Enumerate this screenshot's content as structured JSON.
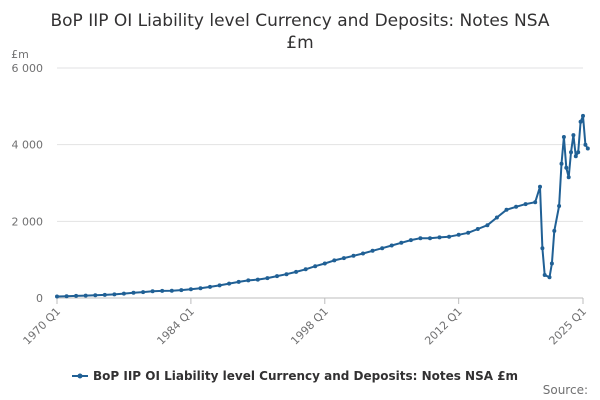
{
  "chart_data": {
    "type": "line",
    "title_line1": "BoP IIP OI Liability level Currency and Deposits: Notes NSA",
    "title_line2": "£m",
    "unit_label": "£m",
    "ylim": [
      0,
      6000
    ],
    "y_ticks": [
      0,
      2000,
      4000,
      6000
    ],
    "y_tick_labels": [
      "0",
      "2 000",
      "4 000",
      "6 000"
    ],
    "x_range": [
      1970,
      2025
    ],
    "x_ticks": [
      1970,
      1984,
      1998,
      2012,
      2025
    ],
    "x_tick_labels": [
      "1970 Q1",
      "1984 Q1",
      "1998 Q1",
      "2012 Q1",
      "2025 Q1"
    ],
    "grid": true,
    "legend_position": "bottom",
    "series": [
      {
        "name": "BoP IIP OI Liability level Currency and Deposits: Notes NSA £m",
        "color": "#206095",
        "points": [
          [
            1970.0,
            40
          ],
          [
            1971.0,
            45
          ],
          [
            1972.0,
            55
          ],
          [
            1973.0,
            62
          ],
          [
            1974.0,
            72
          ],
          [
            1975.0,
            82
          ],
          [
            1976.0,
            95
          ],
          [
            1977.0,
            115
          ],
          [
            1978.0,
            135
          ],
          [
            1979.0,
            155
          ],
          [
            1980.0,
            175
          ],
          [
            1981.0,
            185
          ],
          [
            1982.0,
            190
          ],
          [
            1983.0,
            205
          ],
          [
            1984.0,
            230
          ],
          [
            1985.0,
            255
          ],
          [
            1986.0,
            290
          ],
          [
            1987.0,
            330
          ],
          [
            1988.0,
            375
          ],
          [
            1989.0,
            420
          ],
          [
            1990.0,
            460
          ],
          [
            1991.0,
            480
          ],
          [
            1992.0,
            520
          ],
          [
            1993.0,
            570
          ],
          [
            1994.0,
            620
          ],
          [
            1995.0,
            680
          ],
          [
            1996.0,
            750
          ],
          [
            1997.0,
            830
          ],
          [
            1998.0,
            900
          ],
          [
            1999.0,
            980
          ],
          [
            2000.0,
            1040
          ],
          [
            2001.0,
            1100
          ],
          [
            2002.0,
            1160
          ],
          [
            2003.0,
            1230
          ],
          [
            2004.0,
            1300
          ],
          [
            2005.0,
            1370
          ],
          [
            2006.0,
            1440
          ],
          [
            2007.0,
            1510
          ],
          [
            2008.0,
            1560
          ],
          [
            2009.0,
            1560
          ],
          [
            2010.0,
            1580
          ],
          [
            2011.0,
            1600
          ],
          [
            2012.0,
            1650
          ],
          [
            2013.0,
            1700
          ],
          [
            2014.0,
            1800
          ],
          [
            2015.0,
            1900
          ],
          [
            2016.0,
            2100
          ],
          [
            2017.0,
            2300
          ],
          [
            2018.0,
            2380
          ],
          [
            2019.0,
            2450
          ],
          [
            2020.0,
            2500
          ],
          [
            2020.5,
            2900
          ],
          [
            2020.75,
            1300
          ],
          [
            2021.0,
            600
          ],
          [
            2021.5,
            540
          ],
          [
            2021.75,
            900
          ],
          [
            2022.0,
            1750
          ],
          [
            2022.5,
            2400
          ],
          [
            2022.75,
            3500
          ],
          [
            2023.0,
            4200
          ],
          [
            2023.25,
            3400
          ],
          [
            2023.5,
            3150
          ],
          [
            2023.75,
            3800
          ],
          [
            2024.0,
            4250
          ],
          [
            2024.25,
            3700
          ],
          [
            2024.5,
            3800
          ],
          [
            2024.75,
            4600
          ],
          [
            2025.0,
            4750
          ],
          [
            2025.25,
            4000
          ],
          [
            2025.5,
            3900
          ]
        ]
      }
    ],
    "source_label": "Source:"
  }
}
